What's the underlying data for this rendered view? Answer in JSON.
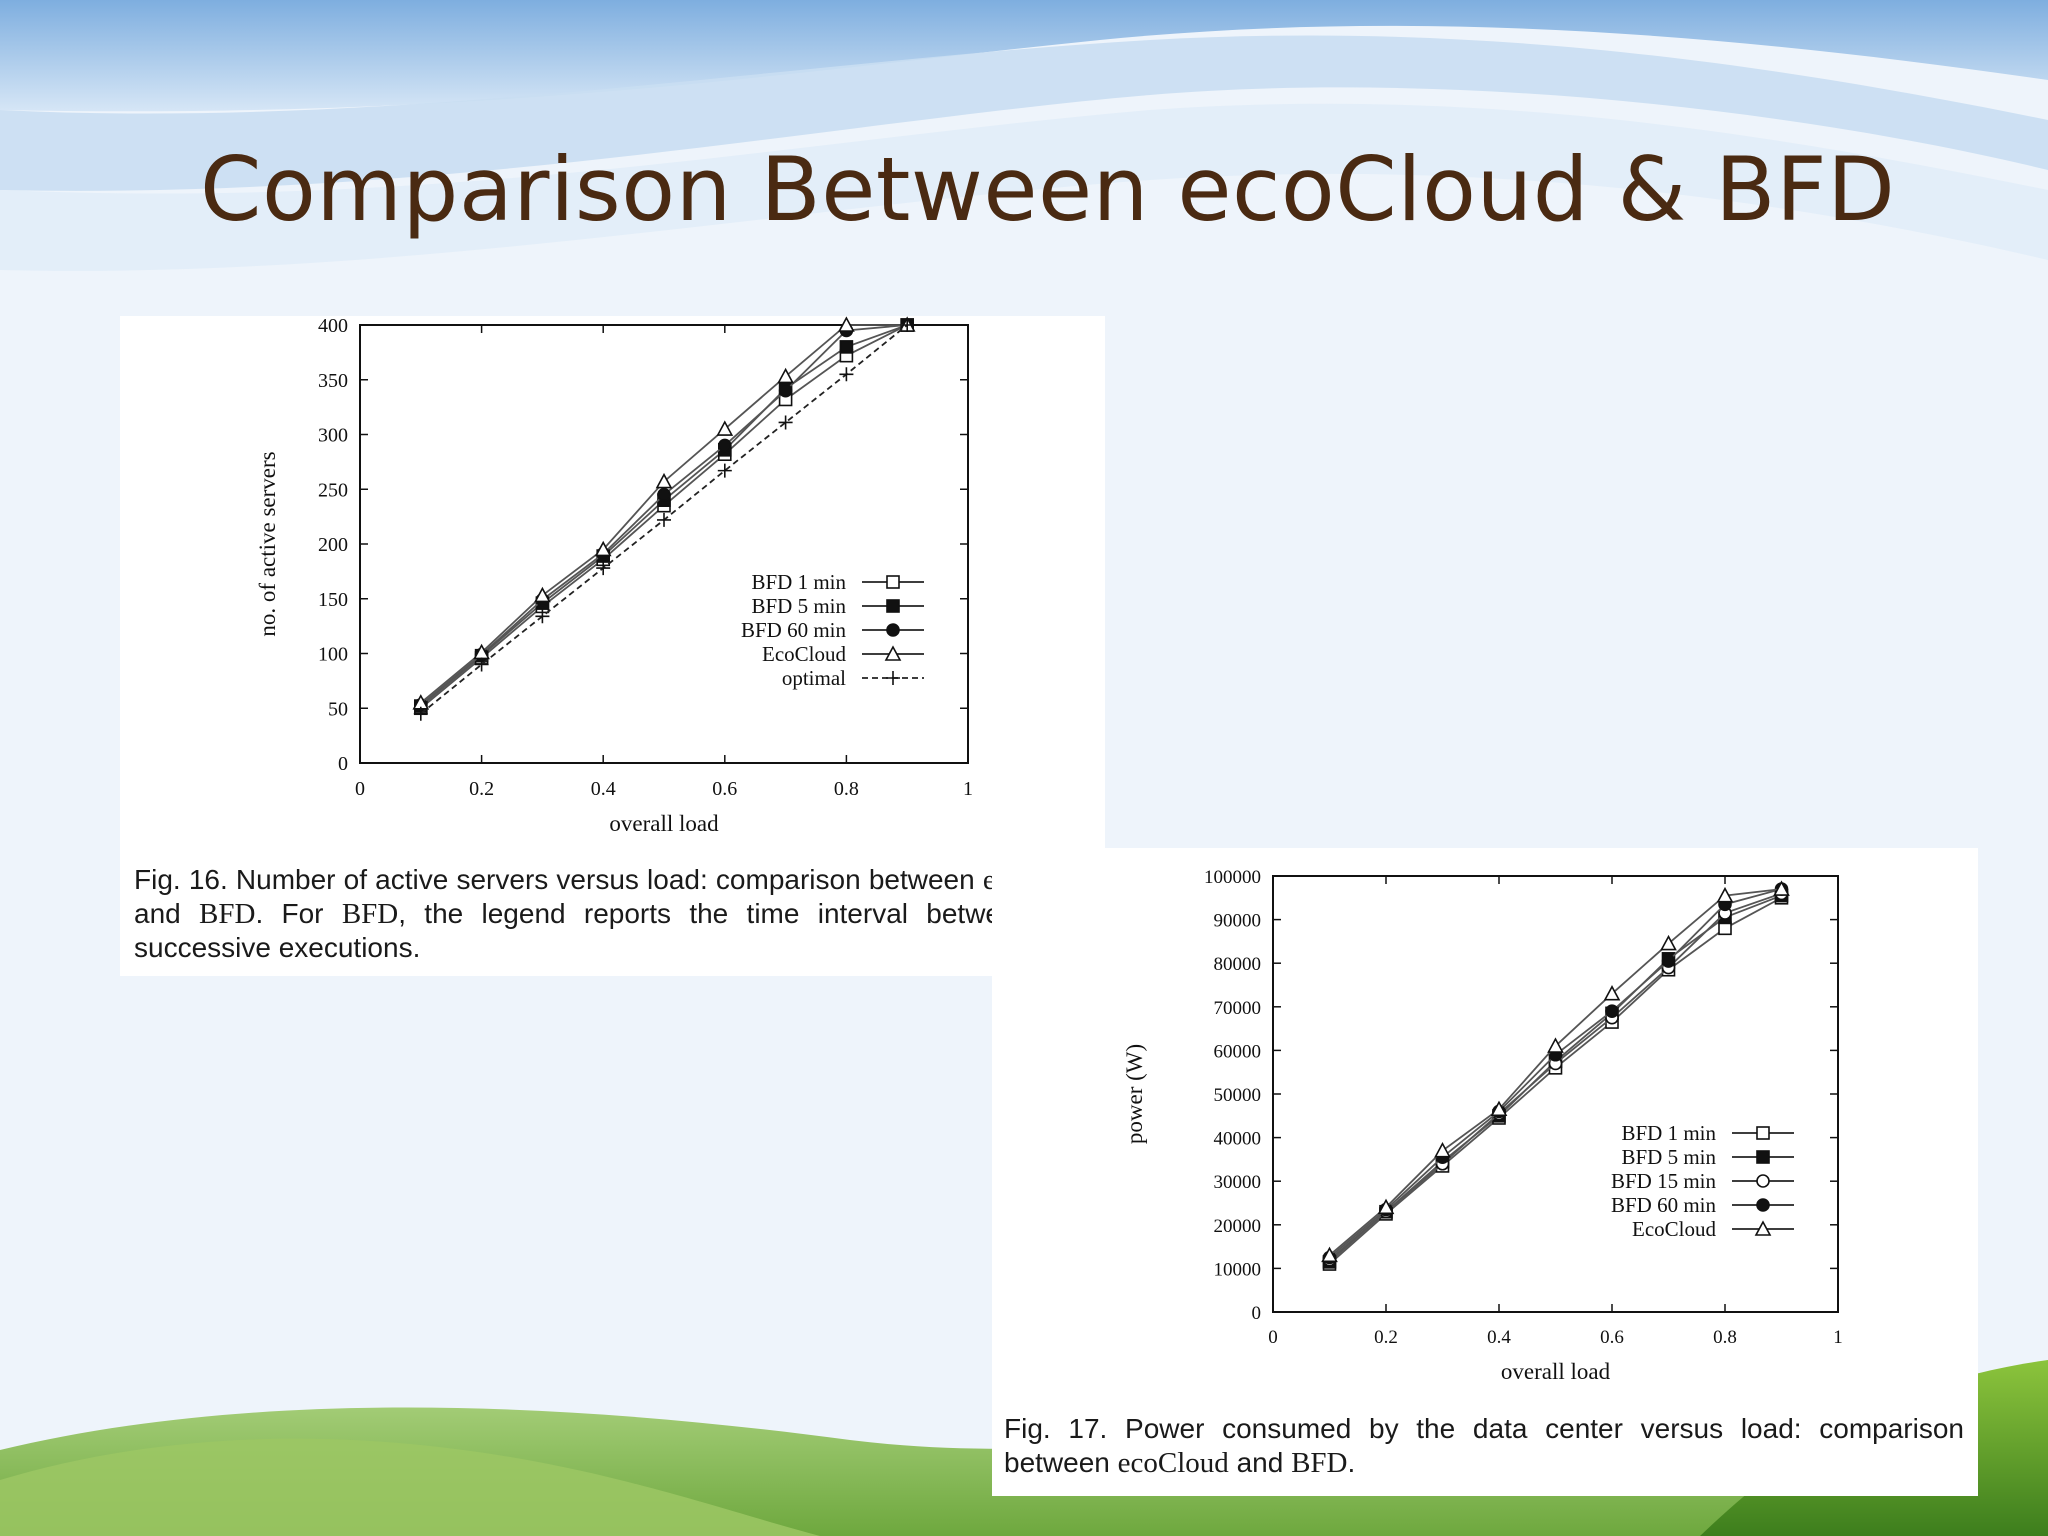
{
  "slide": {
    "title": "Comparison Between ecoCloud & BFD"
  },
  "colors": {
    "title": "#4a2a12",
    "sky_top": "#8fb9e4",
    "hills_green": "#5aa02c"
  },
  "figures": [
    {
      "caption": {
        "prefix": "Fig. 16. Number of active servers versus load: comparison between ",
        "term1": "ecoCloud",
        "middle": " and ",
        "term2": "BFD",
        "middle2": ". For ",
        "term3": "BFD",
        "suffix": ", the legend reports the time interval between two successive executions."
      }
    },
    {
      "caption": {
        "prefix": "Fig. 17. Power consumed by the data center versus load: comparison between ",
        "term1": "ecoCloud",
        "middle": " and ",
        "term2": "BFD",
        "suffix": "."
      }
    }
  ],
  "chart_data": [
    {
      "type": "line",
      "title": "",
      "xlabel": "overall load",
      "ylabel": "no. of active servers",
      "xlim": [
        0,
        1
      ],
      "ylim": [
        0,
        400
      ],
      "xticks": [
        0,
        0.2,
        0.4,
        0.6,
        0.8,
        1
      ],
      "xtick_labels": [
        "0",
        "0.2",
        "0.4",
        "0.6",
        "0.8",
        "1"
      ],
      "yticks": [
        0,
        50,
        100,
        150,
        200,
        250,
        300,
        350,
        400
      ],
      "ytick_labels": [
        "0",
        "50",
        "100",
        "150",
        "200",
        "250",
        "300",
        "350",
        "400"
      ],
      "grid": false,
      "legend_position": "right",
      "x": [
        0.1,
        0.2,
        0.3,
        0.4,
        0.5,
        0.6,
        0.7,
        0.8,
        0.9
      ],
      "series": [
        {
          "name": "BFD 1 min",
          "marker": "open-square",
          "dash": "solid",
          "values": [
            50,
            96,
            143,
            186,
            235,
            282,
            332,
            372,
            400
          ]
        },
        {
          "name": "BFD 5 min",
          "marker": "filled-square",
          "dash": "solid",
          "values": [
            52,
            98,
            146,
            189,
            240,
            286,
            342,
            380,
            400
          ]
        },
        {
          "name": "BFD 60 min",
          "marker": "filled-circle",
          "dash": "solid",
          "values": [
            53,
            99,
            149,
            191,
            245,
            290,
            340,
            395,
            400
          ]
        },
        {
          "name": "EcoCloud",
          "marker": "open-triangle",
          "dash": "solid",
          "values": [
            55,
            101,
            153,
            195,
            257,
            305,
            353,
            400,
            400
          ]
        },
        {
          "name": "optimal",
          "marker": "plus",
          "dash": "dashed",
          "values": [
            45,
            90,
            134,
            178,
            222,
            267,
            311,
            355,
            400
          ]
        }
      ]
    },
    {
      "type": "line",
      "title": "",
      "xlabel": "overall load",
      "ylabel": "power (W)",
      "xlim": [
        0,
        1
      ],
      "ylim": [
        0,
        100000
      ],
      "xticks": [
        0,
        0.2,
        0.4,
        0.6,
        0.8,
        1
      ],
      "xtick_labels": [
        "0",
        "0.2",
        "0.4",
        "0.6",
        "0.8",
        "1"
      ],
      "yticks": [
        0,
        10000,
        20000,
        30000,
        40000,
        50000,
        60000,
        70000,
        80000,
        90000,
        100000
      ],
      "ytick_labels": [
        "0",
        "10000",
        "20000",
        "30000",
        "40000",
        "50000",
        "60000",
        "70000",
        "80000",
        "90000",
        "100000"
      ],
      "grid": false,
      "legend_position": "right",
      "x": [
        0.1,
        0.2,
        0.3,
        0.4,
        0.5,
        0.6,
        0.7,
        0.8,
        0.9
      ],
      "series": [
        {
          "name": "BFD 1 min",
          "marker": "open-square",
          "dash": "solid",
          "values": [
            11000,
            22500,
            33500,
            44500,
            56000,
            66500,
            78500,
            88000,
            95000
          ]
        },
        {
          "name": "BFD 5 min",
          "marker": "filled-square",
          "dash": "solid",
          "values": [
            11500,
            23000,
            34500,
            45000,
            57500,
            68500,
            81000,
            90500,
            95500
          ]
        },
        {
          "name": "BFD 15 min",
          "marker": "open-circle",
          "dash": "solid",
          "values": [
            12000,
            23000,
            34000,
            45500,
            57000,
            67500,
            79000,
            91500,
            96000
          ]
        },
        {
          "name": "BFD 60 min",
          "marker": "filled-circle",
          "dash": "solid",
          "values": [
            12500,
            23500,
            35500,
            46000,
            59000,
            69000,
            80500,
            93500,
            97000
          ]
        },
        {
          "name": "EcoCloud",
          "marker": "open-triangle",
          "dash": "solid",
          "values": [
            13000,
            24000,
            37000,
            46500,
            61000,
            73000,
            84500,
            95500,
            97000
          ]
        }
      ]
    }
  ]
}
